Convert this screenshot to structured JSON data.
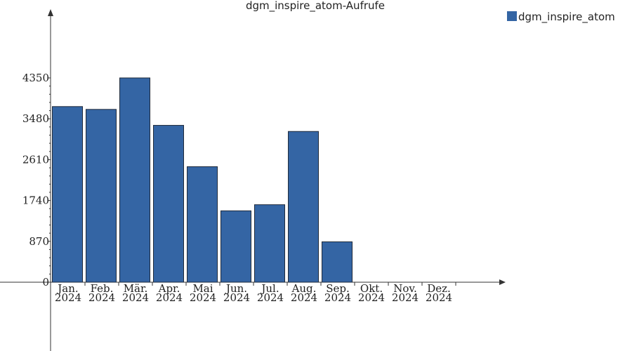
{
  "chart_data": {
    "type": "bar",
    "title": "dgm_inspire_atom-Aufrufe",
    "xlabel": "",
    "ylabel": "",
    "categories": [
      [
        "Jan.",
        "2024"
      ],
      [
        "Feb.",
        "2024"
      ],
      [
        "Mär.",
        "2024"
      ],
      [
        "Apr.",
        "2024"
      ],
      [
        "Mai",
        "2024"
      ],
      [
        "Jun.",
        "2024"
      ],
      [
        "Jul.",
        "2024"
      ],
      [
        "Aug.",
        "2024"
      ],
      [
        "Sep.",
        "2024"
      ],
      [
        "Okt.",
        "2024"
      ],
      [
        "Nov.",
        "2024"
      ],
      [
        "Dez.",
        "2024"
      ]
    ],
    "series": [
      {
        "name": "dgm_inspire_atom",
        "color": "#3465a4",
        "values": [
          3740,
          3680,
          4350,
          3340,
          2460,
          1520,
          1650,
          3210,
          860,
          0,
          0,
          0
        ]
      }
    ],
    "yticks": [
      0,
      870,
      1740,
      2610,
      3480,
      4350
    ],
    "ylim": [
      0,
      5000
    ],
    "legend_position": "top-right",
    "grid": false
  }
}
